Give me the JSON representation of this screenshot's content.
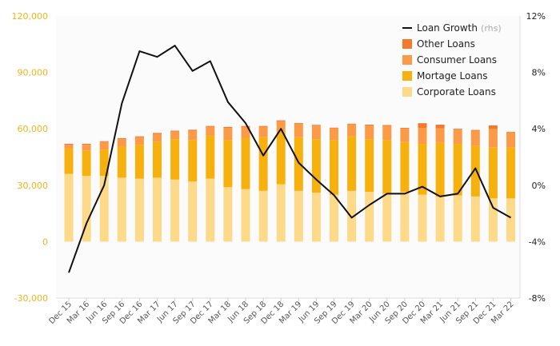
{
  "chart_data": {
    "type": "bar",
    "stacked": true,
    "categories": [
      "Dec 15",
      "Mar 16",
      "Jun 16",
      "Sep 16",
      "Dec 16",
      "Mar 17",
      "Jun 17",
      "Sep 17",
      "Dec 17",
      "Mar 18",
      "Jun 18",
      "Sep 18",
      "Dec 18",
      "Mar 19",
      "Jun 19",
      "Sep 19",
      "Dec 19",
      "Mar 20",
      "Jun 20",
      "Sep 20",
      "Dec 20",
      "Mar 21",
      "Jun 21",
      "Sep 21",
      "Dec 21",
      "Mar 22"
    ],
    "x_tick_labels": [
      "Dec 15",
      "Mar 16",
      "Jun 16",
      "Sep 16",
      "Dec 16",
      "Mar 17",
      "Jun 17",
      "Sep 17",
      "Dec 17",
      "Mar 18",
      "Jun 18",
      "Sep 18",
      "Dec 18",
      "Mar 19",
      "Jun 19",
      "Sep 19",
      "Dec 19",
      "Mar 20",
      "Jun 20",
      "Sep 20",
      "Dec 20",
      "Mar 21",
      "Jun 21",
      "Sep 21",
      "Dec 21",
      "Mar 22"
    ],
    "series": [
      {
        "name": "Corporate Loans",
        "color": "#fdd98a",
        "values": [
          36000,
          35000,
          35000,
          34000,
          33500,
          34000,
          33000,
          32000,
          33500,
          29000,
          28000,
          27000,
          30500,
          27000,
          26000,
          25000,
          27000,
          26500,
          25500,
          26500,
          25000,
          24000,
          24500,
          24000,
          23000,
          23000
        ]
      },
      {
        "name": "Mortage Loans",
        "color": "#f7b10e",
        "values": [
          13500,
          13500,
          14000,
          16500,
          18000,
          19000,
          21500,
          22000,
          23000,
          25000,
          27000,
          28500,
          28000,
          28500,
          28500,
          29000,
          29000,
          28000,
          28500,
          26500,
          27000,
          28500,
          27500,
          27000,
          27000,
          27000
        ]
      },
      {
        "name": "Consumer Loans",
        "color": "#fb9b48",
        "values": [
          2000,
          3000,
          4000,
          4000,
          4000,
          4300,
          4000,
          5000,
          4500,
          6500,
          6000,
          5500,
          5500,
          7200,
          7200,
          6200,
          6300,
          7200,
          7500,
          7000,
          8500,
          7700,
          7500,
          8000,
          9800,
          7800
        ]
      },
      {
        "name": "Other Loans",
        "color": "#f5792d",
        "values": [
          500,
          500,
          400,
          500,
          500,
          500,
          500,
          500,
          500,
          500,
          500,
          500,
          500,
          400,
          400,
          400,
          400,
          500,
          500,
          500,
          2500,
          2000,
          500,
          400,
          2000,
          500
        ]
      }
    ],
    "line_series": {
      "name": "Loan Growth",
      "name_suffix": "(rhs)",
      "color": "#111111",
      "axis": "right",
      "values": [
        -6.2,
        -2.7,
        0,
        5.8,
        9.5,
        9.1,
        9.9,
        8.1,
        8.8,
        5.9,
        4.4,
        2.1,
        4.0,
        1.6,
        0.4,
        -0.7,
        -2.3,
        -1.4,
        -0.6,
        -0.6,
        -0.1,
        -0.8,
        -0.6,
        1.2,
        -1.6,
        -2.3
      ]
    },
    "y_left": {
      "min": -30000,
      "max": 120000,
      "ticks": [
        -30000,
        0,
        30000,
        60000,
        90000,
        120000
      ],
      "tick_labels": [
        "-30,000",
        "0",
        "30,000",
        "60,000",
        "90,000",
        "120,000"
      ],
      "color": "#f0b41c"
    },
    "y_right": {
      "min": -8,
      "max": 12,
      "ticks": [
        -8,
        -4,
        0,
        4,
        8,
        12
      ],
      "tick_labels": [
        "-8%",
        "-4%",
        "0%",
        "4%",
        "8%",
        "12%"
      ]
    },
    "legend": [
      {
        "label": "Loan Growth",
        "suffix": "(rhs)",
        "kind": "line",
        "color": "#111111"
      },
      {
        "label": "Other Loans",
        "kind": "box",
        "color": "#f5792d"
      },
      {
        "label": "Consumer Loans",
        "kind": "box",
        "color": "#fb9b48"
      },
      {
        "label": "Mortage Loans",
        "kind": "box",
        "color": "#f7b10e"
      },
      {
        "label": "Corporate Loans",
        "kind": "box",
        "color": "#fdd98a"
      }
    ],
    "legend_position": "top-right",
    "grid": false
  }
}
